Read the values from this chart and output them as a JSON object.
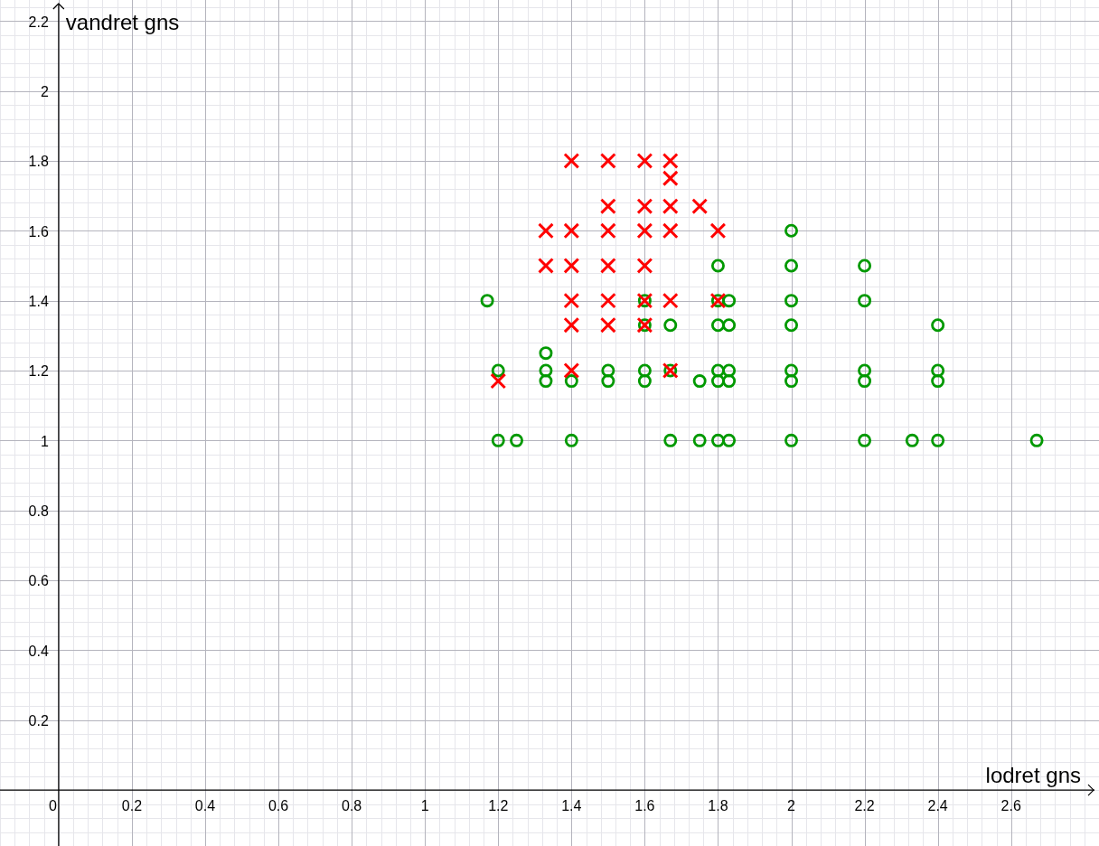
{
  "chart_data": {
    "type": "scatter",
    "xlabel": "lodret gns",
    "ylabel": "vandret gns",
    "xlim": [
      -0.16,
      2.84
    ],
    "ylim": [
      -0.16,
      2.26
    ],
    "xticks": [
      0,
      0.2,
      0.4,
      0.6,
      0.8,
      1,
      1.2,
      1.4,
      1.6,
      1.8,
      2,
      2.2,
      2.4,
      2.6
    ],
    "yticks": [
      0.2,
      0.4,
      0.6,
      0.8,
      1,
      1.2,
      1.4,
      1.6,
      1.8,
      2,
      2.2
    ],
    "grid": true,
    "series": [
      {
        "marker": "cross",
        "color": "#ff0000",
        "x": [
          1.4,
          1.5,
          1.6,
          1.67,
          1.67,
          1.5,
          1.6,
          1.67,
          1.75,
          1.33,
          1.4,
          1.5,
          1.6,
          1.67,
          1.8,
          1.33,
          1.4,
          1.5,
          1.6,
          1.4,
          1.5,
          1.6,
          1.67,
          1.8,
          1.4,
          1.5,
          1.6,
          1.4,
          1.67,
          1.2
        ],
        "values": [
          1.8,
          1.8,
          1.8,
          1.8,
          1.75,
          1.67,
          1.67,
          1.67,
          1.67,
          1.6,
          1.6,
          1.6,
          1.6,
          1.6,
          1.6,
          1.5,
          1.5,
          1.5,
          1.5,
          1.4,
          1.4,
          1.4,
          1.4,
          1.4,
          1.33,
          1.33,
          1.33,
          1.2,
          1.2,
          1.17
        ]
      },
      {
        "marker": "circle",
        "color": "#009900",
        "x": [
          1.17,
          1.6,
          1.8,
          1.83,
          2,
          2.2,
          2,
          1.8,
          2,
          2.2,
          1.6,
          1.67,
          1.8,
          1.83,
          2,
          2.4,
          1.33,
          1.2,
          1.33,
          1.5,
          1.6,
          1.67,
          1.8,
          1.83,
          2,
          2.2,
          2.4,
          1.33,
          1.4,
          1.5,
          1.6,
          1.75,
          1.8,
          1.83,
          2,
          2.2,
          2.4,
          1.2,
          1.25,
          1.4,
          1.67,
          1.75,
          1.8,
          1.83,
          2,
          2.2,
          2.33,
          2.4,
          2.67
        ],
        "values": [
          1.4,
          1.4,
          1.4,
          1.4,
          1.4,
          1.4,
          1.6,
          1.5,
          1.5,
          1.5,
          1.33,
          1.33,
          1.33,
          1.33,
          1.33,
          1.33,
          1.25,
          1.2,
          1.2,
          1.2,
          1.2,
          1.2,
          1.2,
          1.2,
          1.2,
          1.2,
          1.2,
          1.17,
          1.17,
          1.17,
          1.17,
          1.17,
          1.17,
          1.17,
          1.17,
          1.17,
          1.17,
          1,
          1,
          1,
          1,
          1,
          1,
          1,
          1,
          1,
          1,
          1,
          1
        ]
      }
    ]
  }
}
